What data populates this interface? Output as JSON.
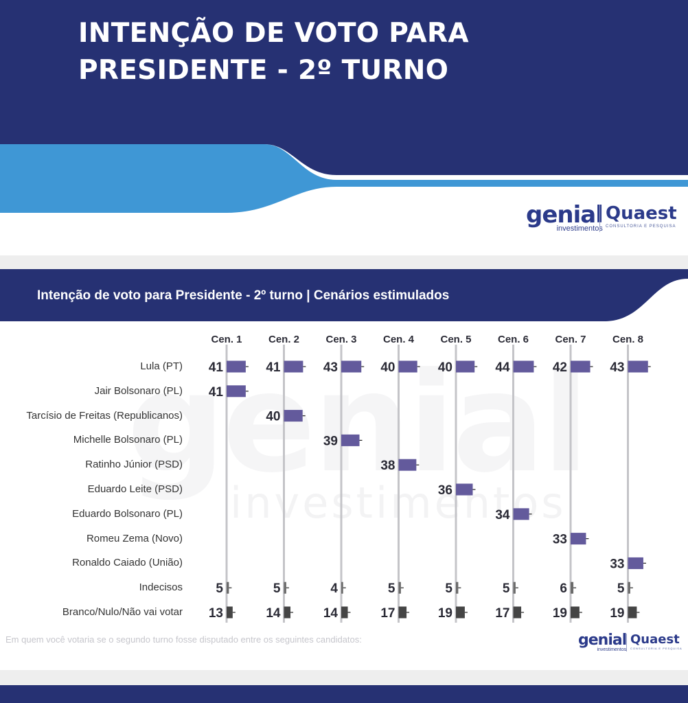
{
  "header": {
    "title_line1": "INTENÇÃO DE VOTO PARA",
    "title_line2": "PRESIDENTE - 2º TURNO"
  },
  "brand": {
    "genial": "genial",
    "genial_sub": "investimentos",
    "quaest": "Quaest",
    "quaest_sub": "CONSULTORIA E PESQUISA"
  },
  "watermark": {
    "word": "genial",
    "sub": "investimentos"
  },
  "chart_data": {
    "type": "bar",
    "title": "Intenção de voto para Presidente - 2º turno | Cenários estimulados",
    "scenarios": [
      "Cen. 1",
      "Cen. 2",
      "Cen. 3",
      "Cen. 4",
      "Cen. 5",
      "Cen. 6",
      "Cen. 7",
      "Cen. 8"
    ],
    "categories": [
      "Lula (PT)",
      "Jair Bolsonaro (PL)",
      "Tarcísio de Freitas (Republicanos)",
      "Michelle Bolsonaro (PL)",
      "Ratinho Júnior (PSD)",
      "Eduardo Leite (PSD)",
      "Eduardo Bolsonaro (PL)",
      "Romeu Zema (Novo)",
      "Ronaldo Caiado (União)",
      "Indecisos",
      "Branco/Nulo/Não vai votar"
    ],
    "values": [
      [
        41,
        41,
        43,
        40,
        40,
        44,
        42,
        43
      ],
      [
        41,
        null,
        null,
        null,
        null,
        null,
        null,
        null
      ],
      [
        null,
        40,
        null,
        null,
        null,
        null,
        null,
        null
      ],
      [
        null,
        null,
        39,
        null,
        null,
        null,
        null,
        null
      ],
      [
        null,
        null,
        null,
        38,
        null,
        null,
        null,
        null
      ],
      [
        null,
        null,
        null,
        null,
        36,
        null,
        null,
        null
      ],
      [
        null,
        null,
        null,
        null,
        null,
        34,
        null,
        null
      ],
      [
        null,
        null,
        null,
        null,
        null,
        null,
        33,
        null
      ],
      [
        null,
        null,
        null,
        null,
        null,
        null,
        null,
        33
      ],
      [
        5,
        5,
        4,
        5,
        5,
        5,
        6,
        5
      ],
      [
        13,
        14,
        14,
        17,
        19,
        17,
        19,
        19
      ]
    ],
    "colors": {
      "candidate": "#635a9c",
      "indecisos": "#6b6b6b",
      "branco": "#454545"
    },
    "footnote": "Em quem você votaria se o segundo turno fosse disputado entre os seguintes candidatos:"
  },
  "colors": {
    "navy": "#263173",
    "light_blue": "#3f97d5",
    "gap": "#eeeeee"
  }
}
